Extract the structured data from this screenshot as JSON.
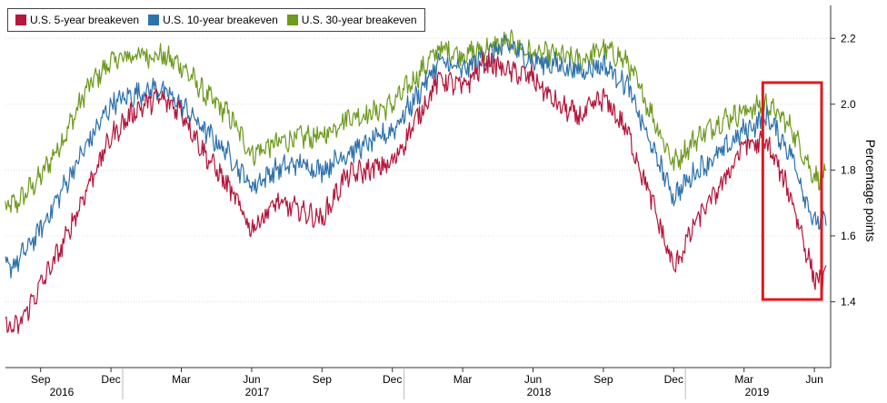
{
  "chart_data": {
    "type": "line",
    "title": "",
    "xlabel": "",
    "ylabel": "Percentage points",
    "ylim": [
      1.2,
      2.3
    ],
    "y_ticks": [
      "2.2",
      "2.0",
      "1.8",
      "1.6",
      "1.4"
    ],
    "x_month_ticks": [
      "Sep",
      "Dec",
      "Mar",
      "Jun",
      "Sep",
      "Dec",
      "Mar",
      "Jun",
      "Sep",
      "Dec",
      "Mar",
      "Jun"
    ],
    "x_year_labels": [
      "2016",
      "2017",
      "2018",
      "2019"
    ],
    "legend_position": "top-left",
    "highlight_box": {
      "x_from": "2019-04",
      "x_to": "2019-06",
      "color": "#e0191e"
    },
    "x": [
      "2016-07",
      "2016-08",
      "2016-09",
      "2016-10",
      "2016-11",
      "2016-12",
      "2017-01",
      "2017-02",
      "2017-03",
      "2017-04",
      "2017-05",
      "2017-06",
      "2017-07",
      "2017-08",
      "2017-09",
      "2017-10",
      "2017-11",
      "2017-12",
      "2018-01",
      "2018-02",
      "2018-03",
      "2018-04",
      "2018-05",
      "2018-06",
      "2018-07",
      "2018-08",
      "2018-09",
      "2018-10",
      "2018-11",
      "2018-12",
      "2019-01",
      "2019-02",
      "2019-03",
      "2019-04",
      "2019-05",
      "2019-06"
    ],
    "series": [
      {
        "name": "U.S. 5-year breakeven",
        "color": "#b5163b",
        "values": [
          1.33,
          1.32,
          1.45,
          1.58,
          1.75,
          1.9,
          1.98,
          2.02,
          1.98,
          1.85,
          1.75,
          1.62,
          1.7,
          1.68,
          1.65,
          1.78,
          1.8,
          1.82,
          1.95,
          2.08,
          2.05,
          2.13,
          2.1,
          2.08,
          2.0,
          1.96,
          2.02,
          1.92,
          1.72,
          1.5,
          1.65,
          1.75,
          1.88,
          1.88,
          1.72,
          1.47
        ]
      },
      {
        "name": "U.S. 10-year breakeven",
        "color": "#2e72ad",
        "values": [
          1.48,
          1.52,
          1.62,
          1.75,
          1.88,
          2.0,
          2.03,
          2.05,
          2.0,
          1.92,
          1.85,
          1.75,
          1.8,
          1.82,
          1.8,
          1.85,
          1.88,
          1.92,
          2.02,
          2.13,
          2.1,
          2.15,
          2.18,
          2.13,
          2.12,
          2.1,
          2.12,
          2.06,
          1.88,
          1.72,
          1.8,
          1.85,
          1.92,
          1.96,
          1.85,
          1.64
        ]
      },
      {
        "name": "U.S. 30-year breakeven",
        "color": "#6e9a1e",
        "values": [
          1.67,
          1.7,
          1.78,
          1.9,
          2.05,
          2.13,
          2.15,
          2.15,
          2.12,
          2.03,
          1.97,
          1.85,
          1.88,
          1.9,
          1.9,
          1.96,
          1.97,
          2.0,
          2.08,
          2.17,
          2.15,
          2.17,
          2.19,
          2.15,
          2.15,
          2.13,
          2.17,
          2.13,
          1.98,
          1.82,
          1.9,
          1.95,
          1.98,
          2.0,
          1.93,
          1.78
        ]
      }
    ]
  }
}
